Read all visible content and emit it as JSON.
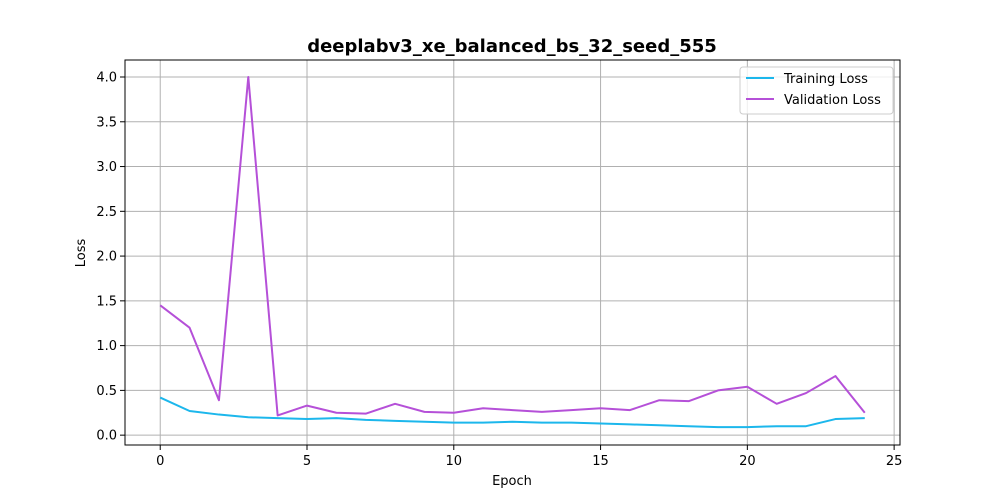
{
  "chart_data": {
    "type": "line",
    "title": "deeplabv3_xe_balanced_bs_32_seed_555",
    "xlabel": "Epoch",
    "ylabel": "Loss",
    "xlim": [
      -1.2,
      25.2
    ],
    "ylim": [
      -0.11,
      4.19
    ],
    "xticks": [
      0,
      5,
      10,
      15,
      20,
      25
    ],
    "yticks": [
      0.0,
      0.5,
      1.0,
      1.5,
      2.0,
      2.5,
      3.0,
      3.5,
      4.0
    ],
    "grid": true,
    "legend_position": "top-right",
    "x": [
      0,
      1,
      2,
      3,
      4,
      5,
      6,
      7,
      8,
      9,
      10,
      11,
      12,
      13,
      14,
      15,
      16,
      17,
      18,
      19,
      20,
      21,
      22,
      23,
      24
    ],
    "series": [
      {
        "name": "Training Loss",
        "color": "#1cb7ec",
        "values": [
          0.42,
          0.27,
          0.23,
          0.2,
          0.19,
          0.18,
          0.19,
          0.17,
          0.16,
          0.15,
          0.14,
          0.14,
          0.15,
          0.14,
          0.14,
          0.13,
          0.12,
          0.11,
          0.1,
          0.09,
          0.09,
          0.1,
          0.1,
          0.18,
          0.19
        ]
      },
      {
        "name": "Validation Loss",
        "color": "#b550d8",
        "values": [
          1.45,
          1.2,
          0.39,
          4.0,
          0.22,
          0.33,
          0.25,
          0.24,
          0.35,
          0.26,
          0.25,
          0.3,
          0.28,
          0.26,
          0.28,
          0.3,
          0.28,
          0.39,
          0.38,
          0.5,
          0.54,
          0.35,
          0.47,
          0.66,
          0.25
        ]
      }
    ]
  }
}
